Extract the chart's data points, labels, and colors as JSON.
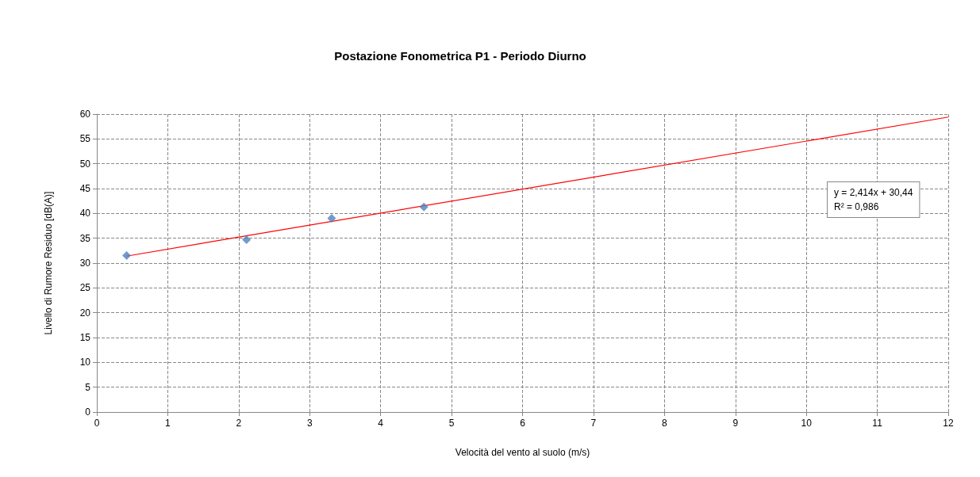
{
  "chart_data": {
    "type": "scatter",
    "title": "Postazione Fonometrica P1 - Periodo Diurno",
    "xlabel": "Velocità del vento al suolo (m/s)",
    "ylabel": "Livello di Rumore Residuo [dB(A)]",
    "series": [
      {
        "color": "#4f81bd",
        "marker": "diamond",
        "x": [
          0.42,
          2.11,
          3.31,
          4.61
        ],
        "values": [
          31.5,
          34.7,
          39.0,
          41.3
        ]
      },
      {
        "type": "line",
        "color": "#ff0000",
        "marker": "none",
        "x": [
          0.42,
          12
        ],
        "values": [
          31.4,
          59.4
        ]
      }
    ],
    "annotations": [
      "y = 2,414x + 30,44\nR² = 0,986"
    ],
    "xlim": [
      0,
      12
    ],
    "xticks": [
      0,
      1,
      2,
      3,
      4,
      5,
      6,
      7,
      8,
      9,
      10,
      11,
      12
    ],
    "ylim": [
      0,
      60
    ],
    "yticks": [
      0,
      5,
      10,
      15,
      20,
      25,
      30,
      35,
      40,
      45,
      50,
      55,
      60
    ],
    "grid": true
  }
}
